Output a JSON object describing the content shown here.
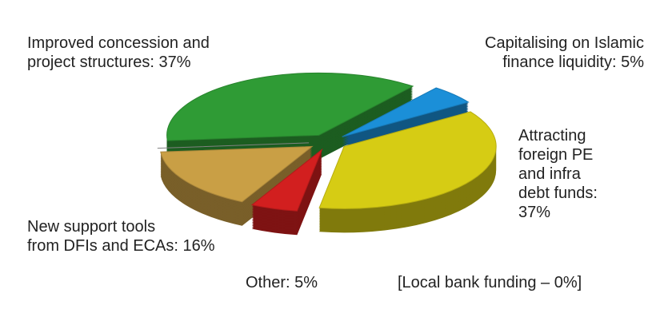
{
  "chart_data": {
    "type": "pie",
    "values": [
      37,
      5,
      37,
      5,
      16,
      0
    ],
    "value_labels": [
      "Improved concession and\nproject structures: 37%",
      "Capitalising on Islamic\nfinance liquidity: 5%",
      "Attracting\nforeign PE\nand infra\ndebt funds:\n37%",
      "Other: 5%",
      "New support tools\nfrom DFIs and ECAs: 16%",
      "[Local bank funding – 0%]"
    ],
    "colors": [
      "#2f9b35",
      "#1b8fd8",
      "#d6cc14",
      "#d21f1f",
      "#c99f45",
      "#999999"
    ]
  }
}
